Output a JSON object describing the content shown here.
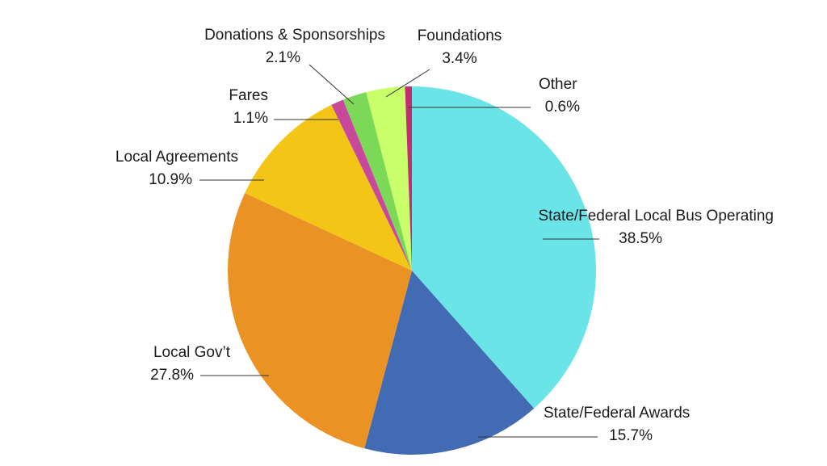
{
  "chart_data": {
    "type": "pie",
    "title": "",
    "start_angle_deg": 0,
    "direction": "clockwise",
    "slices": [
      {
        "label": "State/Federal Local Bus Operating",
        "value": 38.5,
        "value_label": "38.5%",
        "color": "#6BE4E8"
      },
      {
        "label": "State/Federal Awards",
        "value": 15.7,
        "value_label": "15.7%",
        "color": "#436BB3"
      },
      {
        "label": "Local Gov’t",
        "value": 27.8,
        "value_label": "27.8%",
        "color": "#EB9225"
      },
      {
        "label": "Local Agreements",
        "value": 10.9,
        "value_label": "10.9%",
        "color": "#F3C517"
      },
      {
        "label": "Fares",
        "value": 1.1,
        "value_label": "1.1%",
        "color": "#C8489C"
      },
      {
        "label": "Donations & Sponsorships",
        "value": 2.1,
        "value_label": "2.1%",
        "color": "#7CD957"
      },
      {
        "label": "Foundations",
        "value": 3.4,
        "value_label": "3.4%",
        "color": "#C9FF6B"
      },
      {
        "label": "Other",
        "value": 0.6,
        "value_label": "0.6%",
        "color": "#C42E6E"
      }
    ]
  }
}
